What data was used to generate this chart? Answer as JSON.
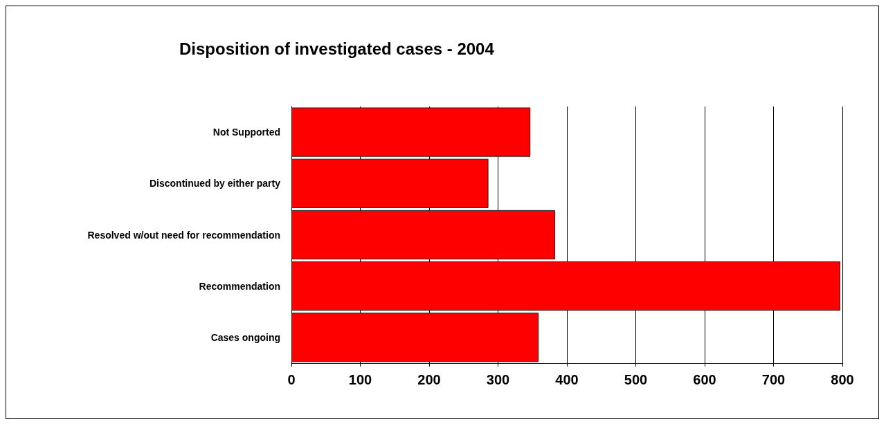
{
  "chart_data": {
    "type": "bar",
    "orientation": "horizontal",
    "title": "Disposition of investigated cases - 2004",
    "categories": [
      "Not Supported",
      "Discontinued by either party",
      "Resolved w/out need for recommendation",
      "Recommendation",
      "Cases ongoing"
    ],
    "values": [
      347,
      286,
      383,
      797,
      359
    ],
    "color": "#ff0000",
    "xlim": [
      0,
      800
    ],
    "xticks": [
      0,
      100,
      200,
      300,
      400,
      500,
      600,
      700,
      800
    ],
    "grid": "x"
  }
}
